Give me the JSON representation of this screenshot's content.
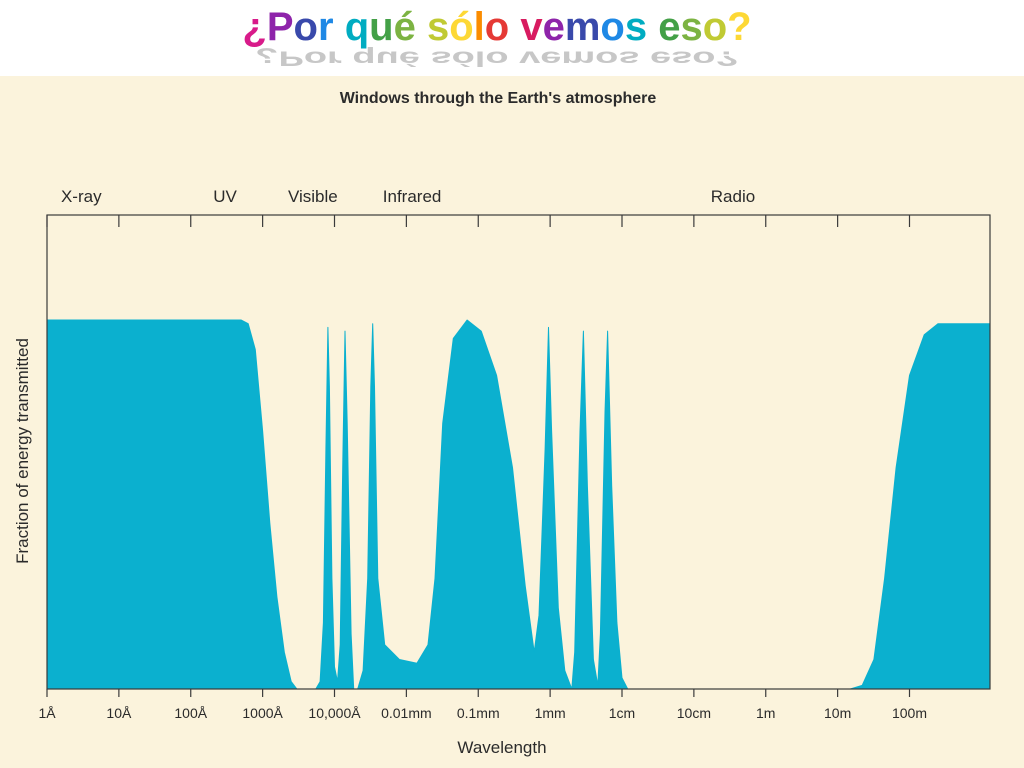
{
  "slide": {
    "title": "¿Por qué sólo vemos eso?",
    "title_colors": [
      "#d81b8a",
      "#8e24aa",
      "#3949ab",
      "#1e88e5",
      "#00acc1",
      "#43a047",
      "#7cb342",
      "#c0ca33",
      "#fdd835",
      "#fb8c00",
      "#e53935",
      "#d81b60",
      "#8e24aa",
      "#3949ab",
      "#1e88e5",
      "#00acc1",
      "#43a047",
      "#7cb342",
      "#c0ca33",
      "#fdd835",
      "#fb8c00",
      "#e53935",
      "#8e24aa",
      "#3949ab"
    ]
  },
  "chart_data": {
    "type": "area",
    "title": "Windows through the Earth's atmosphere",
    "xlabel": "Wavelength",
    "ylabel": "Fraction of energy transmitted",
    "x_scale": "log",
    "x_unit": "m",
    "x_ticks": [
      {
        "label": "1Å",
        "value": 1e-10
      },
      {
        "label": "10Å",
        "value": 1e-09
      },
      {
        "label": "100Å",
        "value": 1e-08
      },
      {
        "label": "1000Å",
        "value": 1e-07
      },
      {
        "label": "10,000Å",
        "value": 1e-06
      },
      {
        "label": "0.01mm",
        "value": 1e-05
      },
      {
        "label": "0.1mm",
        "value": 0.0001
      },
      {
        "label": "1mm",
        "value": 0.001
      },
      {
        "label": "1cm",
        "value": 0.01
      },
      {
        "label": "10cm",
        "value": 0.1
      },
      {
        "label": "1m",
        "value": 1
      },
      {
        "label": "10m",
        "value": 10
      },
      {
        "label": "100m",
        "value": 100
      }
    ],
    "band_labels": [
      {
        "label": "X-ray",
        "value": 3e-10
      },
      {
        "label": "UV",
        "value": 3e-08
      },
      {
        "label": "Visible",
        "value": 5e-07
      },
      {
        "label": "Infrared",
        "value": 1.2e-05
      },
      {
        "label": "Radio",
        "value": 0.35
      }
    ],
    "ylim": [
      0,
      1
    ],
    "fill_color": "#0bb0cf",
    "background_color": "#fbf3dc",
    "grid": false,
    "curve": [
      [
        1e-10,
        1.0
      ],
      [
        5e-08,
        1.0
      ],
      [
        6.3e-08,
        0.99
      ],
      [
        7.9e-08,
        0.92
      ],
      [
        1e-07,
        0.7
      ],
      [
        1.26e-07,
        0.45
      ],
      [
        1.58e-07,
        0.25
      ],
      [
        2e-07,
        0.1
      ],
      [
        2.5e-07,
        0.02
      ],
      [
        3e-07,
        0.0
      ],
      [
        5.5e-07,
        0.0
      ],
      [
        6.3e-07,
        0.02
      ],
      [
        7e-07,
        0.18
      ],
      [
        7.6e-07,
        0.65
      ],
      [
        8.1e-07,
        0.98
      ],
      [
        8.5e-07,
        0.82
      ],
      [
        9.2e-07,
        0.3
      ],
      [
        1e-06,
        0.06
      ],
      [
        1.1e-06,
        0.02
      ],
      [
        1.2e-06,
        0.12
      ],
      [
        1.3e-06,
        0.6
      ],
      [
        1.4e-06,
        0.97
      ],
      [
        1.5e-06,
        0.72
      ],
      [
        1.7e-06,
        0.15
      ],
      [
        1.85e-06,
        0.0
      ],
      [
        2.1e-06,
        0.0
      ],
      [
        2.5e-06,
        0.05
      ],
      [
        2.9e-06,
        0.3
      ],
      [
        3.2e-06,
        0.82
      ],
      [
        3.4e-06,
        0.99
      ],
      [
        3.6e-06,
        0.82
      ],
      [
        4e-06,
        0.3
      ],
      [
        5e-06,
        0.12
      ],
      [
        8e-06,
        0.08
      ],
      [
        1.4e-05,
        0.07
      ],
      [
        2e-05,
        0.12
      ],
      [
        2.5e-05,
        0.3
      ],
      [
        3.2e-05,
        0.72
      ],
      [
        4.5e-05,
        0.95
      ],
      [
        7e-05,
        1.0
      ],
      [
        0.00011,
        0.97
      ],
      [
        0.00018,
        0.85
      ],
      [
        0.0003,
        0.6
      ],
      [
        0.00045,
        0.28
      ],
      [
        0.0006,
        0.1
      ],
      [
        0.0007,
        0.2
      ],
      [
        0.00085,
        0.65
      ],
      [
        0.00095,
        0.98
      ],
      [
        0.00105,
        0.7
      ],
      [
        0.0013,
        0.22
      ],
      [
        0.0016,
        0.05
      ],
      [
        0.002,
        0.0
      ],
      [
        0.0022,
        0.1
      ],
      [
        0.0026,
        0.7
      ],
      [
        0.0029,
        0.97
      ],
      [
        0.0033,
        0.55
      ],
      [
        0.004,
        0.08
      ],
      [
        0.0046,
        0.01
      ],
      [
        0.005,
        0.15
      ],
      [
        0.0058,
        0.75
      ],
      [
        0.0063,
        0.97
      ],
      [
        0.0072,
        0.55
      ],
      [
        0.0085,
        0.18
      ],
      [
        0.01,
        0.03
      ],
      [
        0.012,
        0.0
      ],
      [
        0.6,
        0.0
      ],
      [
        15,
        0.0
      ],
      [
        22,
        0.01
      ],
      [
        32,
        0.08
      ],
      [
        45,
        0.3
      ],
      [
        65,
        0.6
      ],
      [
        100,
        0.85
      ],
      [
        160,
        0.96
      ],
      [
        250,
        0.99
      ],
      [
        400,
        0.99
      ],
      [
        1000,
        0.99
      ]
    ]
  }
}
